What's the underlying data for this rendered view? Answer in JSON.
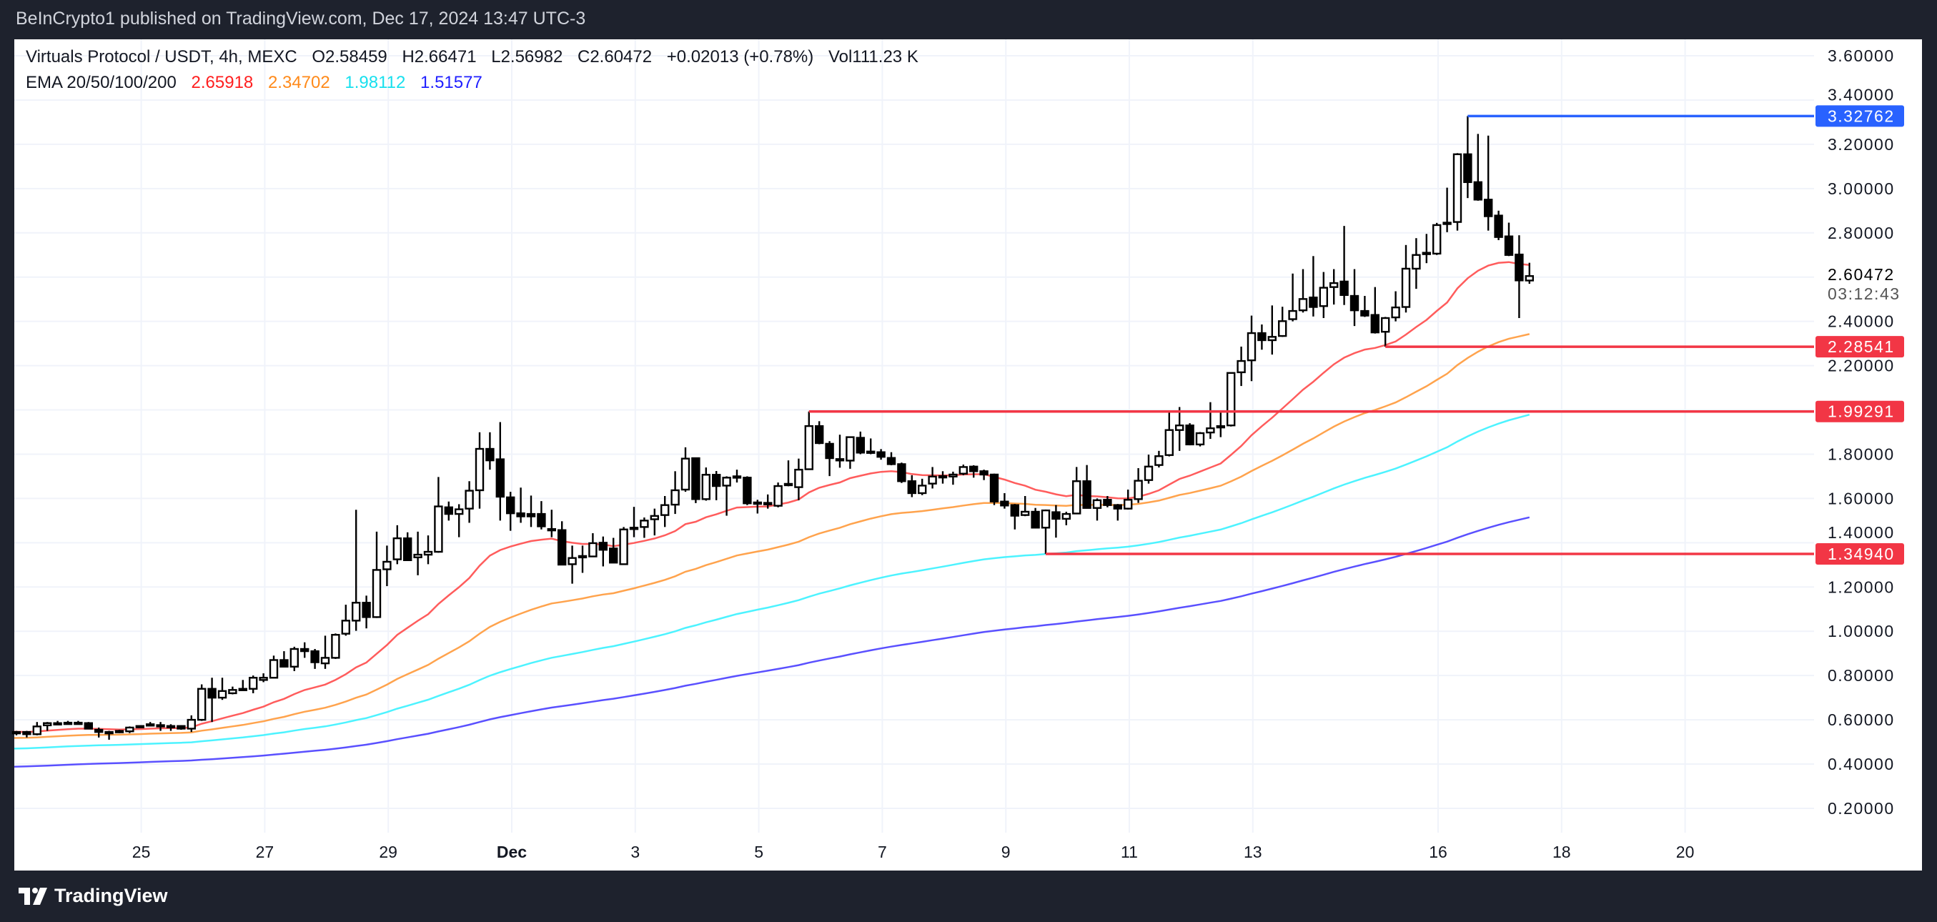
{
  "top_bar": {
    "published": "BeInCrypto1 published on TradingView.com, Dec 17, 2024 13:47 UTC-3"
  },
  "legend": {
    "symbol": "Virtuals Protocol / USDT, 4h, MEXC",
    "open": "O2.58459",
    "high": "H2.66471",
    "low": "L2.56982",
    "close": "C2.60472",
    "change": "+0.02013 (+0.78%)",
    "volume": "Vol111.23 K",
    "ema_title": "EMA 20/50/100/200",
    "ema_values": [
      {
        "value": "2.65918",
        "color": "#ff1f1f"
      },
      {
        "value": "2.34702",
        "color": "#ff8a1a"
      },
      {
        "value": "1.98112",
        "color": "#18e0ee"
      },
      {
        "value": "1.51577",
        "color": "#1f1fff"
      }
    ]
  },
  "price_axis": {
    "ticks": [
      "3.60000",
      "3.40000",
      "3.20000",
      "3.00000",
      "2.80000",
      "2.40000",
      "2.20000",
      "1.80000",
      "1.60000",
      "1.40000",
      "1.20000",
      "1.00000",
      "0.80000",
      "0.60000",
      "0.40000",
      "0.20000"
    ],
    "grid_values": [
      3.6,
      3.4,
      3.2,
      3.0,
      2.8,
      2.6,
      2.4,
      2.2,
      2.0,
      1.8,
      1.6,
      1.4,
      1.2,
      1.0,
      0.8,
      0.6,
      0.4,
      0.2
    ],
    "last_price": "2.60472",
    "countdown": "03:12:43"
  },
  "time_axis": {
    "ticks": [
      {
        "label": "25",
        "day": -5
      },
      {
        "label": "27",
        "day": -3
      },
      {
        "label": "29",
        "day": -1
      },
      {
        "label": "Dec",
        "day": 1,
        "bold": true
      },
      {
        "label": "3",
        "day": 3
      },
      {
        "label": "5",
        "day": 5
      },
      {
        "label": "7",
        "day": 7
      },
      {
        "label": "9",
        "day": 9
      },
      {
        "label": "11",
        "day": 11
      },
      {
        "label": "13",
        "day": 13
      },
      {
        "label": "16",
        "day": 16
      },
      {
        "label": "18",
        "day": 18
      },
      {
        "label": "20",
        "day": 20
      }
    ]
  },
  "levels": [
    {
      "value": 3.32762,
      "label": "3.32762",
      "color": "#2962ff",
      "from_candle": 141
    },
    {
      "value": 2.28541,
      "label": "2.28541",
      "color": "#f23645",
      "from_candle": 133
    },
    {
      "value": 1.99291,
      "label": "1.99291",
      "color": "#f23645",
      "from_candle": 77
    },
    {
      "value": 1.3494,
      "label": "1.34940",
      "color": "#f23645",
      "from_candle": 100
    }
  ],
  "chart_data": {
    "type": "candlestick",
    "interval": "4h",
    "ylim": [
      0.2,
      3.6
    ],
    "ema": [
      {
        "name": "EMA 20",
        "period": 20,
        "seed": 0.546,
        "color": "#ff5c5c"
      },
      {
        "name": "EMA 50",
        "period": 50,
        "seed": 0.518,
        "color": "#ffa34d"
      },
      {
        "name": "EMA 100",
        "period": 100,
        "seed": 0.47,
        "color": "#4df3ff"
      },
      {
        "name": "EMA 200",
        "period": 200,
        "seed": 0.388,
        "color": "#5a50ff"
      }
    ],
    "candles": [
      [
        0.54,
        0.55,
        0.53,
        0.545
      ],
      [
        0.545,
        0.55,
        0.52,
        0.535
      ],
      [
        0.535,
        0.59,
        0.53,
        0.57
      ],
      [
        0.575,
        0.59,
        0.55,
        0.585
      ],
      [
        0.585,
        0.595,
        0.58,
        0.585
      ],
      [
        0.585,
        0.595,
        0.58,
        0.587
      ],
      [
        0.587,
        0.595,
        0.58,
        0.585
      ],
      [
        0.585,
        0.59,
        0.56,
        0.56
      ],
      [
        0.555,
        0.565,
        0.52,
        0.545
      ],
      [
        0.545,
        0.55,
        0.51,
        0.545
      ],
      [
        0.55,
        0.555,
        0.54,
        0.545
      ],
      [
        0.548,
        0.57,
        0.54,
        0.565
      ],
      [
        0.572,
        0.575,
        0.565,
        0.567
      ],
      [
        0.578,
        0.59,
        0.57,
        0.58
      ],
      [
        0.575,
        0.59,
        0.55,
        0.576
      ],
      [
        0.572,
        0.58,
        0.55,
        0.571
      ],
      [
        0.572,
        0.575,
        0.555,
        0.56
      ],
      [
        0.56,
        0.62,
        0.545,
        0.6
      ],
      [
        0.6,
        0.76,
        0.595,
        0.74
      ],
      [
        0.74,
        0.79,
        0.59,
        0.7
      ],
      [
        0.7,
        0.79,
        0.69,
        0.73
      ],
      [
        0.72,
        0.75,
        0.715,
        0.735
      ],
      [
        0.738,
        0.78,
        0.735,
        0.74
      ],
      [
        0.74,
        0.8,
        0.72,
        0.79
      ],
      [
        0.78,
        0.81,
        0.77,
        0.79
      ],
      [
        0.79,
        0.89,
        0.79,
        0.87
      ],
      [
        0.87,
        0.91,
        0.84,
        0.84
      ],
      [
        0.84,
        0.93,
        0.82,
        0.92
      ],
      [
        0.92,
        0.95,
        0.88,
        0.91
      ],
      [
        0.91,
        0.92,
        0.83,
        0.86
      ],
      [
        0.855,
        0.98,
        0.83,
        0.88
      ],
      [
        0.88,
        0.99,
        0.875,
        0.984
      ],
      [
        0.989,
        1.12,
        0.98,
        1.048
      ],
      [
        1.048,
        1.549,
        1.002,
        1.129
      ],
      [
        1.129,
        1.161,
        1.013,
        1.064
      ],
      [
        1.064,
        1.45,
        1.06,
        1.277
      ],
      [
        1.28,
        1.387,
        1.204,
        1.314
      ],
      [
        1.325,
        1.479,
        1.303,
        1.42
      ],
      [
        1.42,
        1.447,
        1.32,
        1.321
      ],
      [
        1.334,
        1.45,
        1.253,
        1.346
      ],
      [
        1.346,
        1.433,
        1.303,
        1.359
      ],
      [
        1.359,
        1.697,
        1.355,
        1.564
      ],
      [
        1.56,
        1.586,
        1.5,
        1.53
      ],
      [
        1.53,
        1.574,
        1.425,
        1.551
      ],
      [
        1.554,
        1.678,
        1.49,
        1.635
      ],
      [
        1.637,
        1.899,
        1.554,
        1.824
      ],
      [
        1.824,
        1.899,
        1.73,
        1.772
      ],
      [
        1.777,
        1.945,
        1.5,
        1.608
      ],
      [
        1.605,
        1.63,
        1.454,
        1.533
      ],
      [
        1.533,
        1.649,
        1.49,
        1.519
      ],
      [
        1.53,
        1.613,
        1.471,
        1.519
      ],
      [
        1.53,
        1.588,
        1.46,
        1.474
      ],
      [
        1.46,
        1.549,
        1.425,
        1.462
      ],
      [
        1.457,
        1.497,
        1.3,
        1.301
      ],
      [
        1.303,
        1.387,
        1.215,
        1.331
      ],
      [
        1.338,
        1.387,
        1.264,
        1.34
      ],
      [
        1.338,
        1.443,
        1.335,
        1.398
      ],
      [
        1.4,
        1.428,
        1.293,
        1.368
      ],
      [
        1.374,
        1.422,
        1.31,
        1.31
      ],
      [
        1.303,
        1.471,
        1.3,
        1.46
      ],
      [
        1.466,
        1.562,
        1.425,
        1.468
      ],
      [
        1.471,
        1.514,
        1.422,
        1.5
      ],
      [
        1.506,
        1.554,
        1.433,
        1.521
      ],
      [
        1.525,
        1.611,
        1.471,
        1.57
      ],
      [
        1.572,
        1.723,
        1.53,
        1.637
      ],
      [
        1.64,
        1.831,
        1.63,
        1.78
      ],
      [
        1.782,
        1.785,
        1.579,
        1.597
      ],
      [
        1.597,
        1.74,
        1.59,
        1.707
      ],
      [
        1.707,
        1.724,
        1.592,
        1.656
      ],
      [
        1.658,
        1.7,
        1.522,
        1.694
      ],
      [
        1.699,
        1.73,
        1.672,
        1.7
      ],
      [
        1.694,
        1.7,
        1.57,
        1.578
      ],
      [
        1.581,
        1.594,
        1.532,
        1.582
      ],
      [
        1.58,
        1.618,
        1.554,
        1.573
      ],
      [
        1.567,
        1.672,
        1.56,
        1.656
      ],
      [
        1.663,
        1.772,
        1.655,
        1.666
      ],
      [
        1.651,
        1.78,
        1.592,
        1.73
      ],
      [
        1.732,
        1.99291,
        1.73,
        1.927
      ],
      [
        1.927,
        1.949,
        1.845,
        1.85
      ],
      [
        1.847,
        1.859,
        1.701,
        1.782
      ],
      [
        1.777,
        1.888,
        1.739,
        1.778
      ],
      [
        1.771,
        1.88,
        1.734,
        1.877
      ],
      [
        1.874,
        1.902,
        1.8,
        1.807
      ],
      [
        1.812,
        1.871,
        1.8,
        1.811
      ],
      [
        1.809,
        1.823,
        1.775,
        1.788
      ],
      [
        1.783,
        1.809,
        1.75,
        1.755
      ],
      [
        1.755,
        1.762,
        1.67,
        1.678
      ],
      [
        1.678,
        1.705,
        1.606,
        1.624
      ],
      [
        1.624,
        1.689,
        1.615,
        1.658
      ],
      [
        1.667,
        1.742,
        1.645,
        1.699
      ],
      [
        1.7,
        1.723,
        1.667,
        1.701
      ],
      [
        1.699,
        1.721,
        1.662,
        1.708
      ],
      [
        1.712,
        1.753,
        1.705,
        1.742
      ],
      [
        1.744,
        1.75,
        1.694,
        1.723
      ],
      [
        1.723,
        1.73,
        1.683,
        1.708
      ],
      [
        1.708,
        1.712,
        1.57,
        1.586
      ],
      [
        1.586,
        1.624,
        1.554,
        1.568
      ],
      [
        1.57,
        1.575,
        1.46,
        1.522
      ],
      [
        1.525,
        1.611,
        1.52,
        1.54
      ],
      [
        1.54,
        1.557,
        1.465,
        1.468
      ],
      [
        1.468,
        1.55,
        1.3494,
        1.546
      ],
      [
        1.538,
        1.57,
        1.423,
        1.508
      ],
      [
        1.508,
        1.54,
        1.479,
        1.53
      ],
      [
        1.532,
        1.742,
        1.53,
        1.678
      ],
      [
        1.678,
        1.751,
        1.555,
        1.557
      ],
      [
        1.557,
        1.6,
        1.5,
        1.592
      ],
      [
        1.594,
        1.611,
        1.56,
        1.57
      ],
      [
        1.57,
        1.575,
        1.5,
        1.554
      ],
      [
        1.554,
        1.64,
        1.55,
        1.594
      ],
      [
        1.597,
        1.737,
        1.58,
        1.68
      ],
      [
        1.683,
        1.798,
        1.667,
        1.744
      ],
      [
        1.751,
        1.815,
        1.74,
        1.791
      ],
      [
        1.796,
        1.992,
        1.79,
        1.909
      ],
      [
        1.909,
        2.013,
        1.815,
        1.93
      ],
      [
        1.93,
        1.94,
        1.84,
        1.844
      ],
      [
        1.844,
        1.9,
        1.835,
        1.895
      ],
      [
        1.898,
        2.035,
        1.869,
        1.917
      ],
      [
        1.925,
        1.998,
        1.877,
        1.927
      ],
      [
        1.93,
        2.167,
        1.925,
        2.167
      ],
      [
        2.17,
        2.286,
        2.108,
        2.221
      ],
      [
        2.224,
        2.426,
        2.13,
        2.347
      ],
      [
        2.347,
        2.386,
        2.272,
        2.315
      ],
      [
        2.315,
        2.472,
        2.25,
        2.33
      ],
      [
        2.334,
        2.466,
        2.33,
        2.401
      ],
      [
        2.41,
        2.616,
        2.4,
        2.447
      ],
      [
        2.45,
        2.636,
        2.44,
        2.501
      ],
      [
        2.508,
        2.695,
        2.422,
        2.465
      ],
      [
        2.469,
        2.623,
        2.415,
        2.552
      ],
      [
        2.555,
        2.636,
        2.476,
        2.573
      ],
      [
        2.58,
        2.831,
        2.474,
        2.519
      ],
      [
        2.515,
        2.636,
        2.379,
        2.45
      ],
      [
        2.447,
        2.515,
        2.42,
        2.426
      ],
      [
        2.429,
        2.555,
        2.345,
        2.35
      ],
      [
        2.353,
        2.42,
        2.28541,
        2.415
      ],
      [
        2.418,
        2.536,
        2.4,
        2.463
      ],
      [
        2.465,
        2.745,
        2.44,
        2.638
      ],
      [
        2.638,
        2.776,
        2.547,
        2.7
      ],
      [
        2.709,
        2.795,
        2.663,
        2.71
      ],
      [
        2.706,
        2.845,
        2.7,
        2.835
      ],
      [
        2.842,
        3.004,
        2.803,
        2.846
      ],
      [
        2.849,
        3.16,
        2.81,
        3.155
      ],
      [
        3.155,
        3.32762,
        2.957,
        3.029
      ],
      [
        3.029,
        3.247,
        2.945,
        2.95
      ],
      [
        2.95,
        3.239,
        2.81,
        2.875
      ],
      [
        2.878,
        2.9,
        2.767,
        2.781
      ],
      [
        2.784,
        2.846,
        2.695,
        2.7
      ],
      [
        2.702,
        2.789,
        2.415,
        2.585
      ],
      [
        2.58459,
        2.66471,
        2.56982,
        2.60472
      ]
    ]
  },
  "footer": {
    "brand": "TradingView"
  }
}
